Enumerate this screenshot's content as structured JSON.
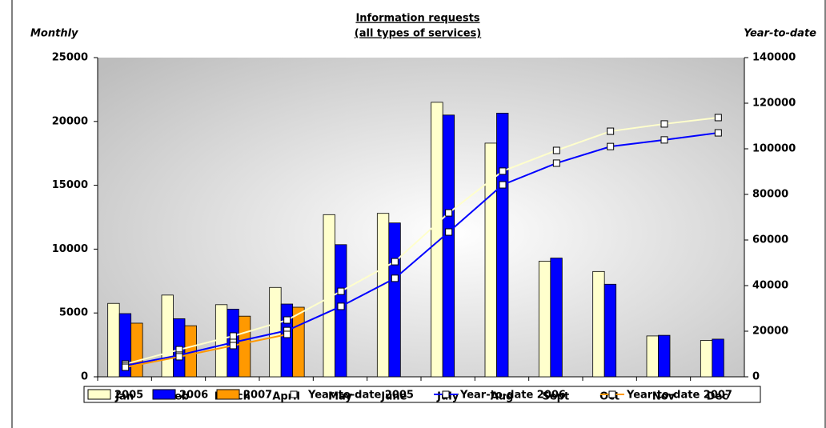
{
  "chart_data": {
    "type": "bar-line",
    "title": "Information requests",
    "subtitle": "(all types of services)",
    "y_label": "Monthly",
    "y2_label": "Year-to-date",
    "categories": [
      "Jan",
      "Feb",
      "March",
      "April",
      "May",
      "June",
      "July",
      "Aug",
      "Sept",
      "Oct",
      "Nov",
      "Dec"
    ],
    "series": [
      {
        "name": "2005",
        "type": "bar",
        "color": "#ffffcc",
        "values": [
          5750,
          6400,
          5650,
          7000,
          12700,
          12800,
          21500,
          18300,
          9050,
          8250,
          3200,
          2850
        ]
      },
      {
        "name": "2006",
        "type": "bar",
        "color": "#0000ff",
        "values": [
          4950,
          4550,
          5300,
          5700,
          10350,
          12050,
          20500,
          20650,
          9300,
          7250,
          3250,
          2950
        ]
      },
      {
        "name": "2007",
        "type": "bar",
        "color": "#ff9900",
        "values": [
          4200,
          4000,
          4750,
          5450,
          null,
          null,
          null,
          null,
          null,
          null,
          null,
          null
        ]
      },
      {
        "name": "Year-to-date 2005",
        "type": "line",
        "axis": "y2",
        "color": "#ffffcc",
        "values": [
          5600,
          11900,
          17900,
          24900,
          37500,
          50500,
          71900,
          90200,
          99300,
          107700,
          110900,
          113700
        ]
      },
      {
        "name": "Year-to-date 2006",
        "type": "line",
        "axis": "y2",
        "color": "#0000ff",
        "values": [
          4900,
          9500,
          15100,
          20300,
          30900,
          43200,
          63500,
          84200,
          93700,
          101000,
          103900,
          107000
        ]
      },
      {
        "name": "Year-to-date 2007",
        "type": "line",
        "axis": "y2",
        "color": "#ff9900",
        "values": [
          4200,
          8800,
          13700,
          18600,
          null,
          null,
          null,
          null,
          null,
          null,
          null,
          null
        ]
      }
    ],
    "ylim": [
      0,
      25000
    ],
    "yticks": [
      0,
      5000,
      10000,
      15000,
      20000,
      25000
    ],
    "y2lim": [
      0,
      140000
    ],
    "y2ticks": [
      0,
      20000,
      40000,
      60000,
      80000,
      100000,
      120000,
      140000
    ],
    "legend": "bottom"
  }
}
